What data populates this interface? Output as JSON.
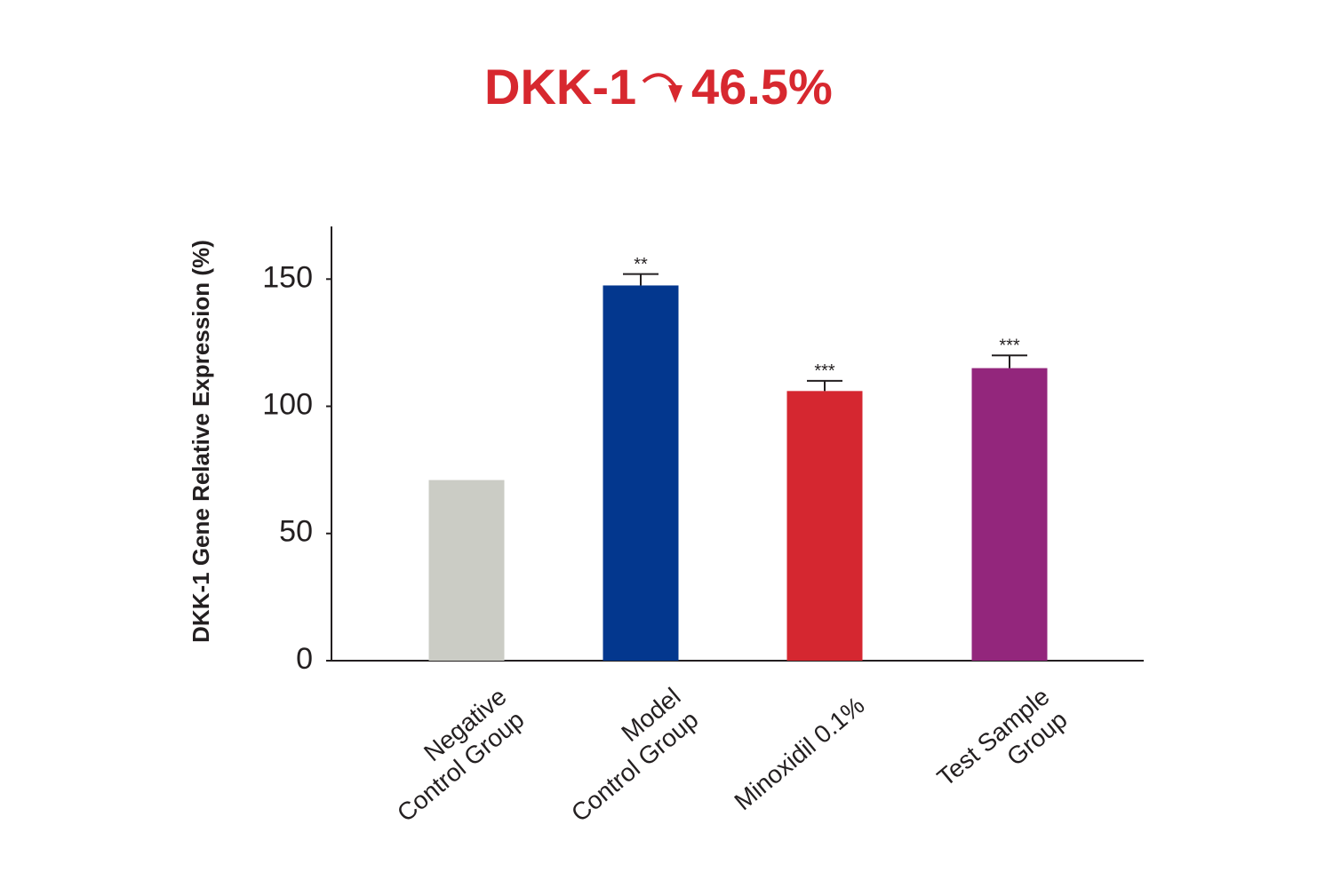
{
  "chart_data": {
    "type": "bar",
    "title": "DKK-1",
    "annotation": "46.5%",
    "y_label": "DKK-1 Gene Relative Expression (%)",
    "categories": [
      [
        "Negative",
        "Control Group"
      ],
      [
        "Model",
        "Control Group"
      ],
      [
        "Minoxidil 0.1%"
      ],
      [
        "Test Sample",
        "Group"
      ]
    ],
    "values": [
      71,
      147.5,
      106,
      115
    ],
    "errors": [
      null,
      4.5,
      4,
      5
    ],
    "significance": [
      null,
      "**",
      "***",
      "***"
    ],
    "colors": [
      "#cbccc5",
      "#03378e",
      "#d52730",
      "#93267c"
    ],
    "ylim": [
      0,
      170
    ],
    "yticks": [
      0,
      50,
      100,
      150
    ],
    "grid": false
  }
}
